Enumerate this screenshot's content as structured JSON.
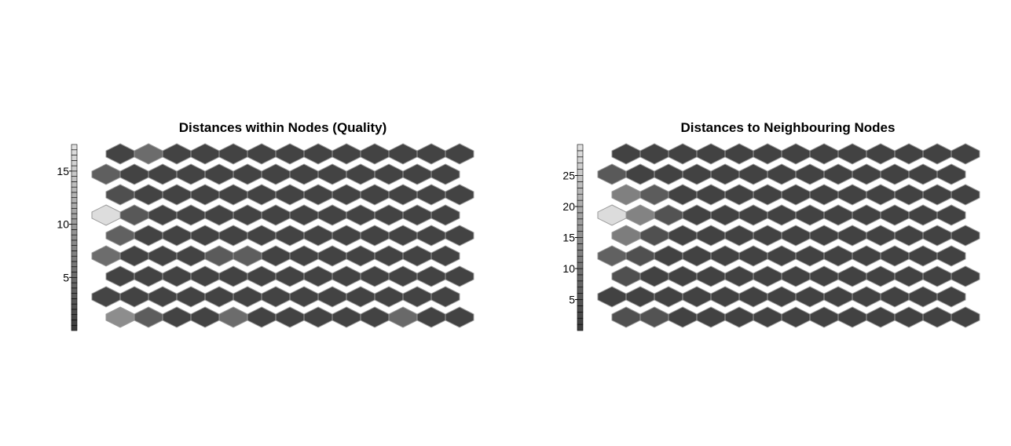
{
  "chart_data": [
    {
      "type": "heatmap",
      "layout": "hexagonal",
      "title": "Distances within Nodes (Quality)",
      "grid": {
        "rows": 9,
        "cols": 13
      },
      "colorbar": {
        "min": 0,
        "max": 17.5,
        "steps": 35,
        "ticks": [
          5,
          10,
          15
        ]
      },
      "background_value": 0.9,
      "cells": [
        {
          "row": 0,
          "col": 1,
          "value": 5.2
        },
        {
          "row": 1,
          "col": 0,
          "value": 3.9
        },
        {
          "row": 2,
          "col": 0,
          "value": 2.2
        },
        {
          "row": 3,
          "col": 0,
          "value": 17.0
        },
        {
          "row": 3,
          "col": 1,
          "value": 3.1
        },
        {
          "row": 4,
          "col": 0,
          "value": 4.1
        },
        {
          "row": 5,
          "col": 0,
          "value": 5.3
        },
        {
          "row": 5,
          "col": 4,
          "value": 3.4
        },
        {
          "row": 5,
          "col": 5,
          "value": 3.8
        },
        {
          "row": 7,
          "col": 0,
          "value": 1.1
        },
        {
          "row": 8,
          "col": 0,
          "value": 8.6
        },
        {
          "row": 8,
          "col": 1,
          "value": 3.6
        },
        {
          "row": 8,
          "col": 4,
          "value": 5.2
        },
        {
          "row": 8,
          "col": 10,
          "value": 4.9
        }
      ]
    },
    {
      "type": "heatmap",
      "layout": "hexagonal",
      "title": "Distances to Neighbouring Nodes",
      "grid": {
        "rows": 9,
        "cols": 13
      },
      "colorbar": {
        "min": 0,
        "max": 30,
        "steps": 30,
        "ticks": [
          5,
          10,
          15,
          20,
          25
        ]
      },
      "background_value": 1.5,
      "cells": [
        {
          "row": 1,
          "col": 0,
          "value": 5.5
        },
        {
          "row": 2,
          "col": 0,
          "value": 12.5
        },
        {
          "row": 2,
          "col": 1,
          "value": 6.0
        },
        {
          "row": 3,
          "col": 0,
          "value": 29.0
        },
        {
          "row": 3,
          "col": 1,
          "value": 13.0
        },
        {
          "row": 3,
          "col": 2,
          "value": 4.5
        },
        {
          "row": 4,
          "col": 0,
          "value": 12.0
        },
        {
          "row": 4,
          "col": 1,
          "value": 4.0
        },
        {
          "row": 5,
          "col": 0,
          "value": 7.0
        },
        {
          "row": 5,
          "col": 1,
          "value": 4.0
        },
        {
          "row": 6,
          "col": 0,
          "value": 4.0
        },
        {
          "row": 8,
          "col": 0,
          "value": 4.0
        },
        {
          "row": 8,
          "col": 1,
          "value": 4.5
        }
      ]
    }
  ]
}
